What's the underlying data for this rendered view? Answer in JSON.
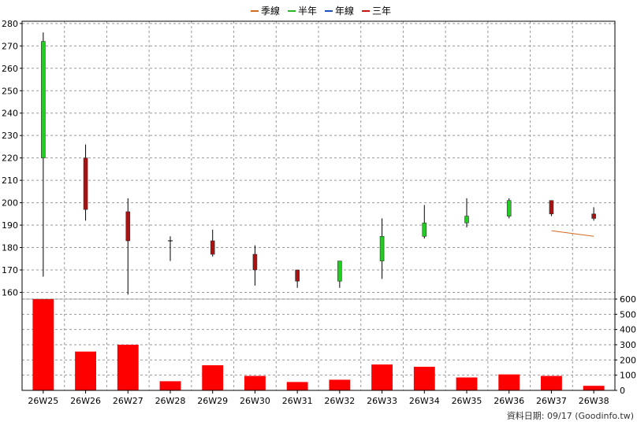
{
  "chart_data": {
    "type": "candlestick",
    "categories": [
      "26W25",
      "26W26",
      "26W27",
      "26W28",
      "26W29",
      "26W30",
      "26W31",
      "26W32",
      "26W33",
      "26W34",
      "26W35",
      "26W36",
      "26W37",
      "26W38"
    ],
    "ohlc": [
      {
        "open": 220,
        "high": 276,
        "low": 167,
        "close": 272
      },
      {
        "open": 220,
        "high": 226,
        "low": 192,
        "close": 197
      },
      {
        "open": 196,
        "high": 202,
        "low": 159,
        "close": 183
      },
      {
        "open": 183,
        "high": 185,
        "low": 174,
        "close": 183
      },
      {
        "open": 183,
        "high": 188,
        "low": 176,
        "close": 177
      },
      {
        "open": 177,
        "high": 181,
        "low": 163,
        "close": 170
      },
      {
        "open": 170,
        "high": 170,
        "low": 162,
        "close": 165
      },
      {
        "open": 165,
        "high": 174,
        "low": 162,
        "close": 174
      },
      {
        "open": 174,
        "high": 193,
        "low": 166,
        "close": 185
      },
      {
        "open": 185,
        "high": 199,
        "low": 184,
        "close": 191
      },
      {
        "open": 191,
        "high": 202,
        "low": 189,
        "close": 194
      },
      {
        "open": 194,
        "high": 202,
        "low": 193,
        "close": 201
      },
      {
        "open": 201,
        "high": 201,
        "low": 194,
        "close": 195
      },
      {
        "open": 195,
        "high": 198,
        "low": 192,
        "close": 193
      }
    ],
    "volume": [
      600,
      255,
      300,
      60,
      165,
      95,
      55,
      70,
      170,
      155,
      85,
      105,
      95,
      30
    ],
    "ma_quarter": [
      null,
      null,
      null,
      null,
      null,
      null,
      null,
      null,
      null,
      null,
      null,
      null,
      187.5,
      185
    ],
    "legend": [
      {
        "name": "季線",
        "color": "#d2691e"
      },
      {
        "name": "半年",
        "color": "#22bb22"
      },
      {
        "name": "年線",
        "color": "#1f4fbf"
      },
      {
        "name": "三年",
        "color": "#cc1111"
      }
    ],
    "price_ticks": [
      160,
      170,
      180,
      190,
      200,
      210,
      220,
      230,
      240,
      250,
      260,
      270,
      280
    ],
    "volume_ticks": [
      0,
      100,
      200,
      300,
      400,
      500,
      600
    ],
    "ylim_price": [
      157,
      281
    ],
    "ylim_volume": [
      0,
      600
    ],
    "colors": {
      "up": "#22cc22",
      "down": "#aa1111",
      "volume_bar": "#ff0000",
      "wick": "#000000",
      "grid": "#999999",
      "ma_quarter": "#d2691e"
    },
    "grid": true
  },
  "footer": {
    "label": "資料日期: 09/17  (Goodinfo.tw)"
  }
}
